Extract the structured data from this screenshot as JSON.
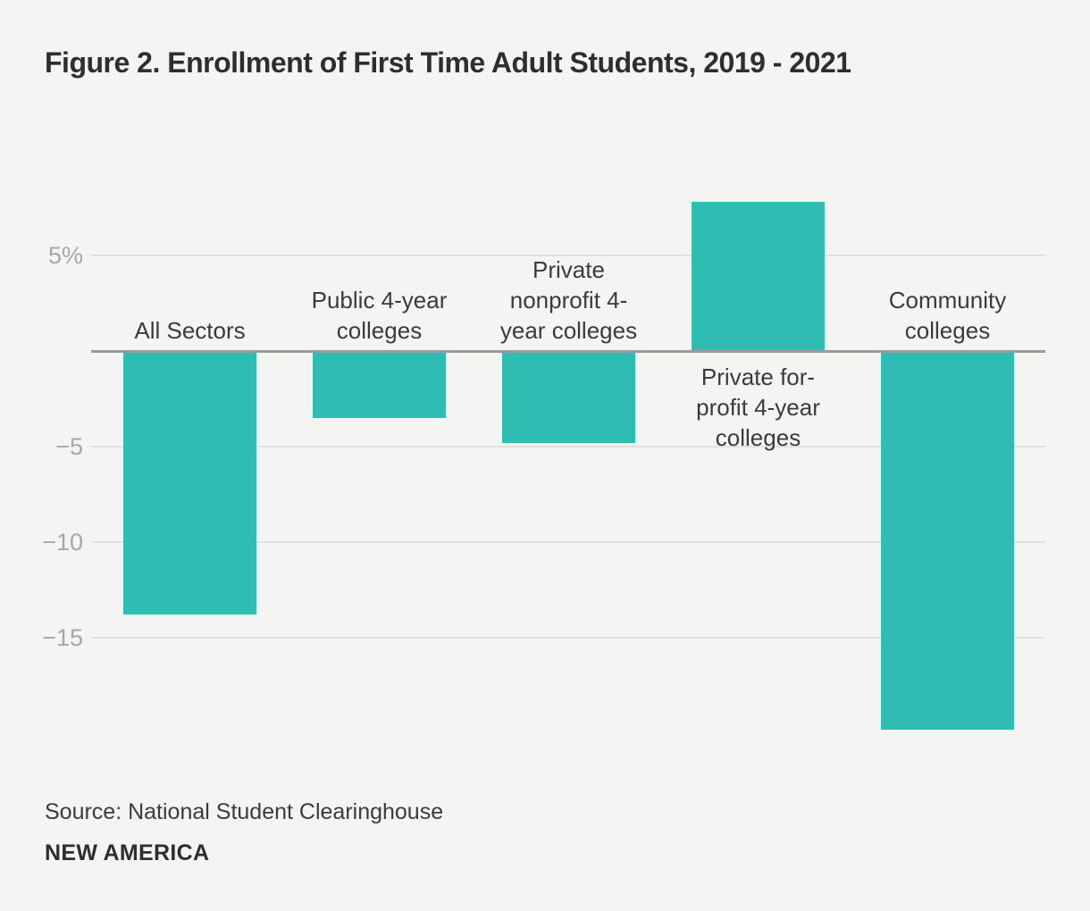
{
  "page": {
    "title": "Figure 2. Enrollment of First Time Adult Students, 2019 - 2021",
    "source": "Source: National Student Clearinghouse",
    "brand": "NEW AMERICA"
  },
  "colors": {
    "background": "#f4f4f3",
    "bar": "#2fbcb3",
    "grid": "#e0e0df",
    "zero_line": "#9b9b9b",
    "tick_text": "#a7a7a6",
    "label_text": "#3b3b3b",
    "title_text": "#2e2e2e"
  },
  "chart_data": {
    "type": "bar",
    "title": "Figure 2. Enrollment of First Time Adult Students, 2019 - 2021",
    "unit": "percent",
    "categories": [
      "All Sectors",
      "Public 4-year colleges",
      "Private nonprofit 4-year colleges",
      "Private for-profit 4-year colleges",
      "Community colleges"
    ],
    "values": [
      -13.8,
      -3.5,
      -4.8,
      7.8,
      -19.8
    ],
    "label_lines": [
      [
        "All Sectors"
      ],
      [
        "Public 4-year",
        "colleges"
      ],
      [
        "Private",
        "nonprofit 4-",
        "year colleges"
      ],
      [
        "Private for-",
        "profit 4-year",
        "colleges"
      ],
      [
        "Community",
        "colleges"
      ]
    ],
    "y_ticks": [
      5,
      -5,
      -10,
      -15
    ],
    "y_tick_labels": [
      "5%",
      "−5",
      "−10",
      "−15"
    ],
    "ylim": [
      -20,
      8
    ],
    "grid": true,
    "zero_baseline": true,
    "legend": null,
    "xlabel": "",
    "ylabel": ""
  }
}
